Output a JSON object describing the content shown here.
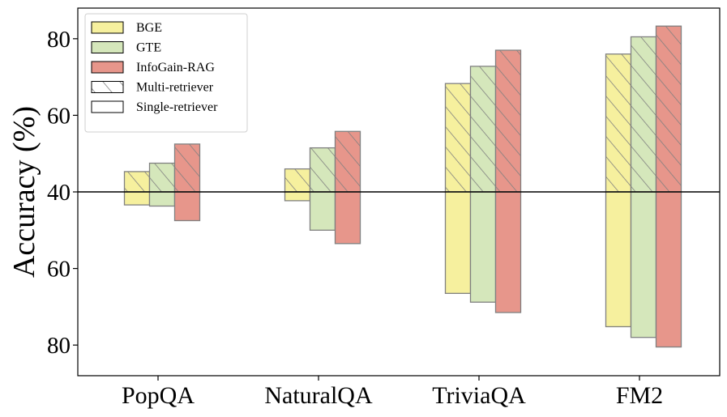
{
  "chart_data": {
    "type": "bar",
    "title": "",
    "xlabel": "",
    "ylabel": "Accuracy (%)",
    "layout": "mirrored-about-40",
    "categories": [
      "PopQA",
      "NaturalQA",
      "TriviaQA",
      "FM2"
    ],
    "series": [
      {
        "name": "BGE",
        "color": "#f6f09e",
        "multi_retriever": [
          45.3,
          46.0,
          68.3,
          76.0
        ],
        "single_retriever": [
          43.4,
          42.3,
          66.5,
          75.2
        ]
      },
      {
        "name": "GTE",
        "color": "#d5e7bb",
        "multi_retriever": [
          47.5,
          51.5,
          72.8,
          80.5
        ],
        "single_retriever": [
          43.7,
          50.0,
          68.8,
          78.0
        ]
      },
      {
        "name": "InfoGain-RAG",
        "color": "#e7968b",
        "multi_retriever": [
          52.5,
          55.8,
          77.0,
          83.3
        ],
        "single_retriever": [
          47.5,
          53.5,
          71.5,
          80.5
        ]
      }
    ],
    "y_ticks": [
      {
        "label": "80",
        "offset": 40
      },
      {
        "label": "60",
        "offset": 20
      },
      {
        "label": "40",
        "offset": 0
      },
      {
        "label": "60",
        "offset": -20
      },
      {
        "label": "80",
        "offset": -40
      }
    ],
    "y_offset_range": [
      -48,
      48
    ],
    "baseline": 40,
    "legend": {
      "position": "top-left",
      "entries": [
        {
          "label": "BGE",
          "style": "BGE"
        },
        {
          "label": "GTE",
          "style": "GTE"
        },
        {
          "label": "InfoGain-RAG",
          "style": "InfoGain-RAG"
        },
        {
          "label": "Multi-retriever",
          "style": "hatch"
        },
        {
          "label": "Single-retriever",
          "style": "plain"
        }
      ]
    }
  }
}
